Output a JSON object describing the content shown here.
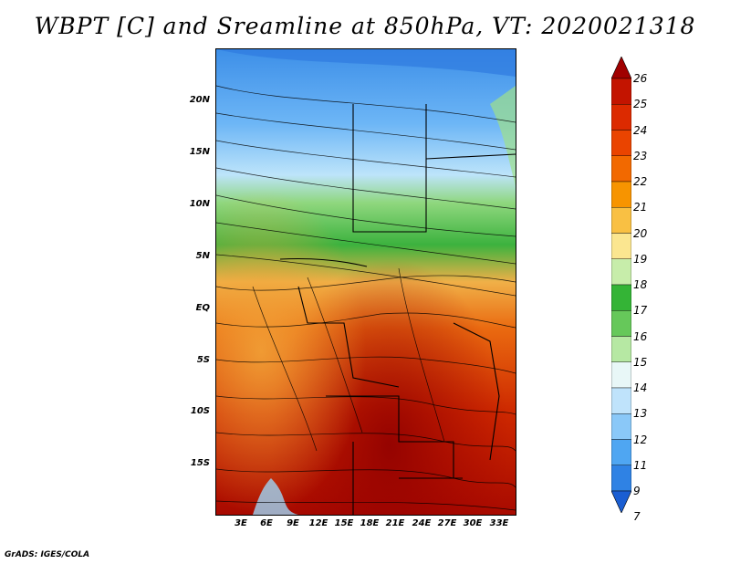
{
  "title": "WBPT [C] and Sreamline at 850hPa, VT: 2020021318",
  "lat_labels": [
    "20N",
    "15N",
    "10N",
    "5N",
    "EQ",
    "5S",
    "10S",
    "15S"
  ],
  "lon_labels": [
    "3E",
    "6E",
    "9E",
    "12E",
    "15E",
    "18E",
    "21E",
    "24E",
    "27E",
    "30E",
    "33E"
  ],
  "colorbar": {
    "levels": [
      "26",
      "25",
      "24",
      "23",
      "22",
      "21",
      "20",
      "19",
      "18",
      "17",
      "16",
      "15",
      "14",
      "13",
      "12",
      "11",
      "9",
      "7"
    ],
    "colors": [
      "#a00000",
      "#c31400",
      "#dc2a00",
      "#ea4400",
      "#f26900",
      "#f79400",
      "#f9c043",
      "#fbe690",
      "#c7edaa",
      "#34b436",
      "#66c85a",
      "#b6e8a3",
      "#e8f7f7",
      "#bfe3fb",
      "#8ac8f8",
      "#4fa6f2",
      "#2f82e4",
      "#1a5ed2"
    ]
  },
  "credit": "GrADS: IGES/COLA"
}
